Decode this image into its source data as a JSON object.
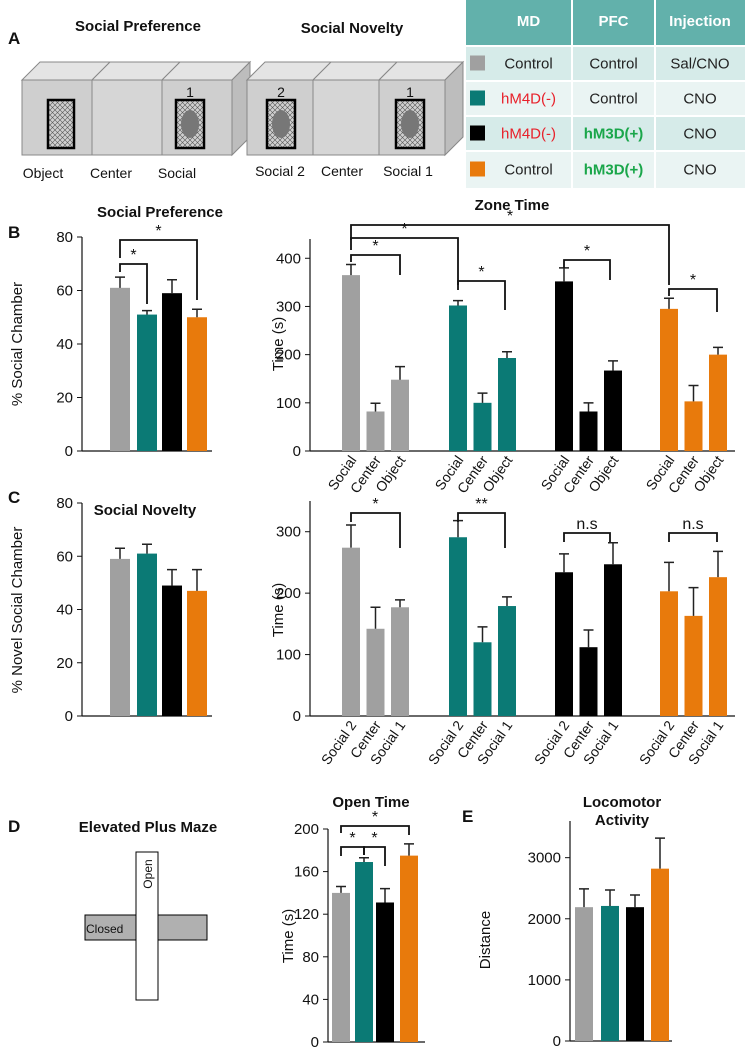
{
  "panel_labels": [
    "A",
    "B",
    "C",
    "D",
    "E"
  ],
  "diagrams": [
    {
      "title": "Social Preference",
      "labels": [
        "Object",
        "Center",
        "Social"
      ],
      "numbers": [
        "1"
      ]
    },
    {
      "title": "Social Novelty",
      "labels": [
        "Social 2",
        "Center",
        "Social 1"
      ],
      "numbers": [
        "2",
        "1"
      ]
    }
  ],
  "table": {
    "header": [
      "MD",
      "PFC",
      "Injection"
    ],
    "rows": [
      {
        "color": "#a0a0a0",
        "cells": [
          "Control",
          "Control",
          "Sal/CNO"
        ],
        "text_colors": [
          "#222222",
          "#222222",
          "#222222"
        ],
        "bold": [
          false,
          false,
          false
        ]
      },
      {
        "color": "#0b7a75",
        "cells": [
          "hM4D(-)",
          "Control",
          "CNO"
        ],
        "text_colors": [
          "#e8202a",
          "#222222",
          "#222222"
        ],
        "bold": [
          false,
          false,
          false
        ]
      },
      {
        "color": "#000000",
        "cells": [
          "hM4D(-)",
          "hM3D(+)",
          "CNO"
        ],
        "text_colors": [
          "#e8202a",
          "#1aa64a",
          "#222222"
        ],
        "bold": [
          false,
          true,
          false
        ]
      },
      {
        "color": "#e87a0c",
        "cells": [
          "Control",
          "hM3D(+)",
          "CNO"
        ],
        "text_colors": [
          "#222222",
          "#1aa64a",
          "#222222"
        ],
        "bold": [
          false,
          true,
          false
        ]
      }
    ]
  },
  "maze": {
    "title": "Elevated Plus Maze",
    "open": "Open",
    "closed": "Closed"
  },
  "chart_data": [
    {
      "type": "bar",
      "title": "Social Preference",
      "ylabel": "% Social Chamber",
      "ylim": [
        0,
        80
      ],
      "yticks": [
        0,
        20,
        40,
        60,
        80
      ],
      "values": [
        61,
        51,
        59,
        50
      ],
      "errors": [
        4,
        1.5,
        5,
        3
      ],
      "colors": [
        "#a0a0a0",
        "#0b7a75",
        "#000000",
        "#e87a0c"
      ],
      "annotations": [
        "*",
        "*"
      ]
    },
    {
      "type": "grouped-bar",
      "title": "Zone Time",
      "ylabel": "Time (s)",
      "ylim": [
        0,
        440
      ],
      "yticks": [
        0,
        100,
        200,
        300,
        400
      ],
      "categories": [
        "Social",
        "Center",
        "Object"
      ],
      "series": [
        {
          "color": "#a0a0a0",
          "values": [
            365,
            82,
            148
          ],
          "errors": [
            22,
            17,
            27
          ]
        },
        {
          "color": "#0b7a75",
          "values": [
            302,
            100,
            193
          ],
          "errors": [
            10,
            20,
            13
          ]
        },
        {
          "color": "#000000",
          "values": [
            352,
            82,
            167
          ],
          "errors": [
            28,
            18,
            20
          ]
        },
        {
          "color": "#e87a0c",
          "values": [
            295,
            103,
            200
          ],
          "errors": [
            22,
            33,
            15
          ]
        }
      ],
      "annotations": [
        "*",
        "*",
        "*",
        "*",
        "*",
        "*"
      ]
    },
    {
      "type": "bar",
      "title": "Social Novelty",
      "ylabel": "% Novel Social Chamber",
      "ylim": [
        0,
        80
      ],
      "yticks": [
        0,
        20,
        40,
        60,
        80
      ],
      "values": [
        59,
        61,
        49,
        47
      ],
      "errors": [
        4,
        3.5,
        6,
        8
      ],
      "colors": [
        "#a0a0a0",
        "#0b7a75",
        "#000000",
        "#e87a0c"
      ]
    },
    {
      "type": "grouped-bar",
      "ylabel": "Time (s)",
      "ylim": [
        0,
        350
      ],
      "yticks": [
        0,
        100,
        200,
        300
      ],
      "categories": [
        "Social 2",
        "Center",
        "Social 1"
      ],
      "series": [
        {
          "color": "#a0a0a0",
          "values": [
            274,
            142,
            177
          ],
          "errors": [
            37,
            35,
            12
          ]
        },
        {
          "color": "#0b7a75",
          "values": [
            291,
            120,
            179
          ],
          "errors": [
            27,
            25,
            15
          ]
        },
        {
          "color": "#000000",
          "values": [
            234,
            112,
            247
          ],
          "errors": [
            30,
            28,
            35
          ]
        },
        {
          "color": "#e87a0c",
          "values": [
            203,
            163,
            226
          ],
          "errors": [
            47,
            46,
            42
          ]
        }
      ],
      "annotations": [
        "*",
        "**",
        "n.s",
        "n.s"
      ]
    },
    {
      "type": "bar",
      "title": "Open Time",
      "ylabel": "Time (s)",
      "ylim": [
        0,
        200
      ],
      "yticks": [
        0,
        40,
        80,
        120,
        160,
        200
      ],
      "values": [
        140,
        169,
        131,
        175
      ],
      "errors": [
        6,
        4,
        13,
        11
      ],
      "colors": [
        "#a0a0a0",
        "#0b7a75",
        "#000000",
        "#e87a0c"
      ],
      "annotations": [
        "*",
        "*",
        "*"
      ]
    },
    {
      "type": "bar",
      "title": "Locomotor Activity",
      "ylabel": "Distance",
      "ylim": [
        0,
        3600
      ],
      "yticks": [
        0,
        1000,
        2000,
        3000
      ],
      "values": [
        2190,
        2210,
        2190,
        2820
      ],
      "errors": [
        300,
        260,
        200,
        500
      ],
      "colors": [
        "#a0a0a0",
        "#0b7a75",
        "#000000",
        "#e87a0c"
      ]
    }
  ]
}
